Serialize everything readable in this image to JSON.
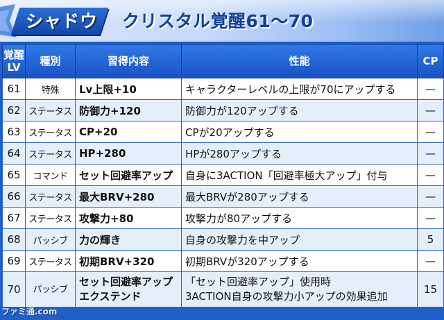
{
  "header": {
    "character_name": "シャドウ",
    "title": "クリスタル覚醒61〜70"
  },
  "table": {
    "columns": {
      "lv_line1": "覚醒",
      "lv_line2": "LV",
      "type": "種別",
      "skill": "習得内容",
      "effect": "性能",
      "cp": "CP"
    },
    "rows": [
      {
        "lv": "61",
        "type": "特殊",
        "skill": "Lv上限+10",
        "effect": "キャラクターレベルの上限が70にアップする",
        "cp": "—"
      },
      {
        "lv": "62",
        "type": "ステータス",
        "skill": "防御力+120",
        "effect": "防御力が120アップする",
        "cp": "—"
      },
      {
        "lv": "63",
        "type": "ステータス",
        "skill": "CP+20",
        "effect": "CPが20アップする",
        "cp": "—"
      },
      {
        "lv": "64",
        "type": "ステータス",
        "skill": "HP+280",
        "effect": "HPが280アップする",
        "cp": "—"
      },
      {
        "lv": "65",
        "type": "コマンド",
        "skill": "セット回避率アップ",
        "effect": "自身に3ACTION「回避率極大アップ」付与",
        "cp": "—"
      },
      {
        "lv": "66",
        "type": "ステータス",
        "skill": "最大BRV+280",
        "effect": "最大BRVが280アップする",
        "cp": "—"
      },
      {
        "lv": "67",
        "type": "ステータス",
        "skill": "攻撃力+80",
        "effect": "攻撃力が80アップする",
        "cp": "—"
      },
      {
        "lv": "68",
        "type": "パッシブ",
        "skill": "力の輝き",
        "effect": "自身の攻撃力を中アップ",
        "cp": "5"
      },
      {
        "lv": "69",
        "type": "ステータス",
        "skill": "初期BRV+320",
        "effect": "初期BRVが320アップする",
        "cp": "—"
      },
      {
        "lv": "70",
        "type": "パッシブ",
        "skill_line1": "セット回避率アップ",
        "skill_line2": "エクステンド",
        "effect_line1": "「セット回避率アップ」使用時",
        "effect_line2": "3ACTION自身の攻撃力小アップの効果追加",
        "cp": "15"
      }
    ]
  },
  "watermark": "ファミ通.com",
  "colors": {
    "header_blue": "#1a52c4",
    "title_text": "#123f9b",
    "row_alt": "#e4effc",
    "border": "#2a64c8"
  }
}
